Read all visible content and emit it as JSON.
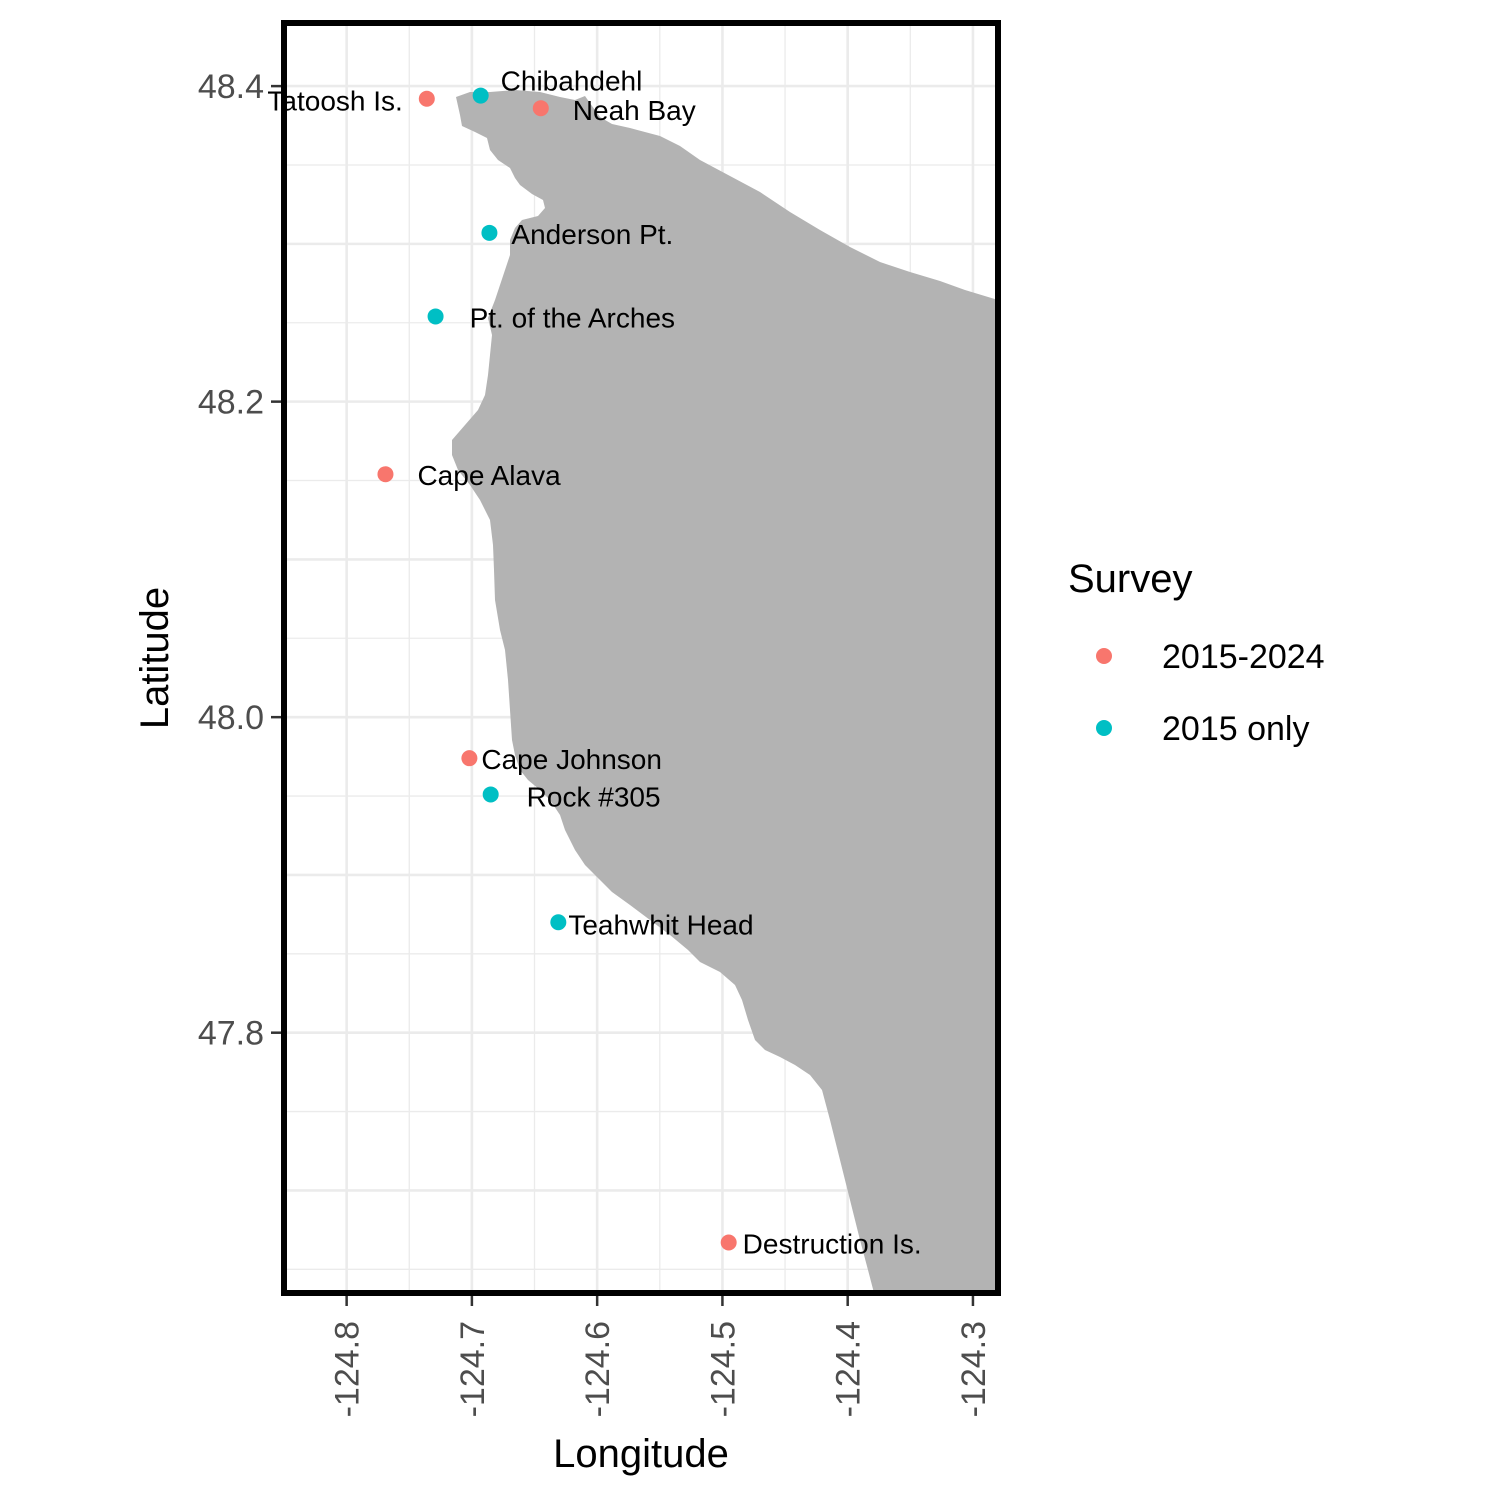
{
  "chart_data": {
    "type": "scatter",
    "xlabel": "Longitude",
    "ylabel": "Latitude",
    "xlim": [
      -124.85,
      -124.28
    ],
    "ylim": [
      48.44,
      47.635
    ],
    "x_ticks": [
      -124.8,
      -124.7,
      -124.6,
      -124.5,
      -124.4,
      -124.3
    ],
    "y_ticks": [
      48.4,
      48.2,
      48.0,
      47.8
    ],
    "grid": true,
    "legend": {
      "title": "Survey",
      "position": "right",
      "items": [
        {
          "label": "2015-2024",
          "color": "#F8766D"
        },
        {
          "label": "2015 only",
          "color": "#00BFC4"
        }
      ]
    },
    "colors": {
      "2015-2024": "#F8766D",
      "2015 only": "#00BFC4",
      "land": "#B3B3B3"
    },
    "points": [
      {
        "label": "Tatoosh Is.",
        "survey": "2015-2024",
        "lon": -124.736,
        "lat": 48.392
      },
      {
        "label": "Chibahdehl",
        "survey": "2015 only",
        "lon": -124.693,
        "lat": 48.394
      },
      {
        "label": "Neah Bay",
        "survey": "2015-2024",
        "lon": -124.645,
        "lat": 48.386
      },
      {
        "label": "Anderson Pt.",
        "survey": "2015 only",
        "lon": -124.686,
        "lat": 48.307
      },
      {
        "label": "Pt. of the Arches",
        "survey": "2015 only",
        "lon": -124.729,
        "lat": 48.254
      },
      {
        "label": "Cape Alava",
        "survey": "2015-2024",
        "lon": -124.769,
        "lat": 48.154
      },
      {
        "label": "Cape Johnson",
        "survey": "2015-2024",
        "lon": -124.702,
        "lat": 47.974
      },
      {
        "label": "Rock #305",
        "survey": "2015 only",
        "lon": -124.685,
        "lat": 47.951
      },
      {
        "label": "Teahwhit Head",
        "survey": "2015 only",
        "lon": -124.631,
        "lat": 47.87
      },
      {
        "label": "Destruction Is.",
        "survey": "2015-2024",
        "lon": -124.495,
        "lat": 47.667
      }
    ]
  }
}
